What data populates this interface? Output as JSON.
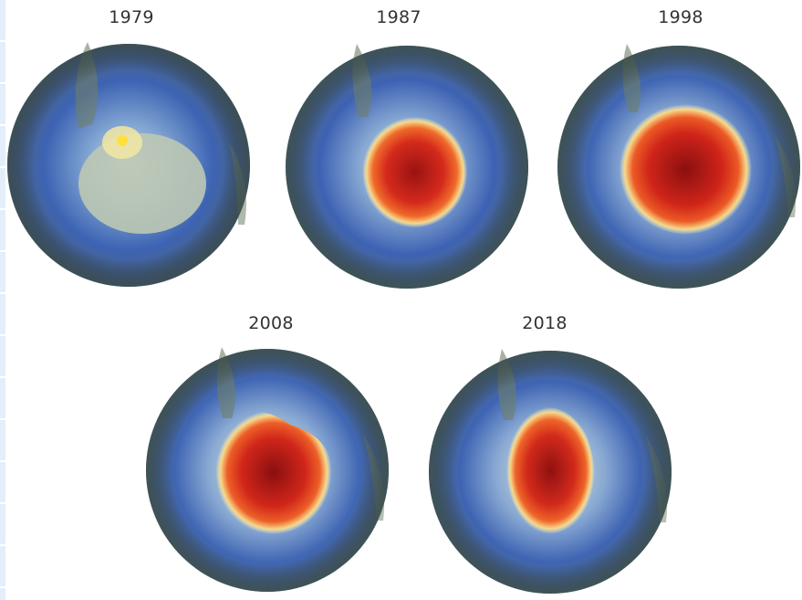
{
  "globes": [
    {
      "year": "1979",
      "hole": 0.0
    },
    {
      "year": "1987",
      "hole": 0.55
    },
    {
      "year": "1998",
      "hole": 0.85
    },
    {
      "year": "2008",
      "hole": 0.8
    },
    {
      "year": "2018",
      "hole": 0.7
    }
  ],
  "colors": {
    "ocean_blue": "#3b5fb0",
    "mid_blue": "#6f94c8",
    "pale": "#f3efc2",
    "land": "#6f8070",
    "hole_red": "#d62b1f",
    "hole_core": "#8a0f10",
    "label": "#333333"
  }
}
